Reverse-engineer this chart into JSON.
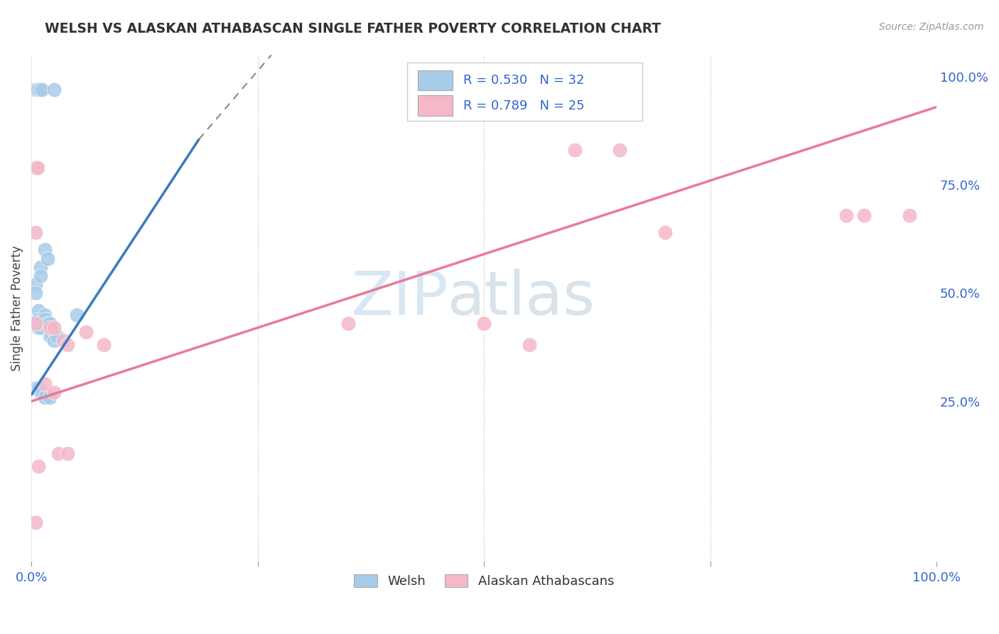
{
  "title": "WELSH VS ALASKAN ATHABASCAN SINGLE FATHER POVERTY CORRELATION CHART",
  "source": "Source: ZipAtlas.com",
  "ylabel": "Single Father Poverty",
  "xlim": [
    0.0,
    1.0
  ],
  "ylim": [
    -0.12,
    1.05
  ],
  "welsh_R": 0.53,
  "welsh_N": 32,
  "alaskan_R": 0.789,
  "alaskan_N": 25,
  "welsh_color": "#a8cce8",
  "alaskan_color": "#f4b8c8",
  "welsh_line_color": "#3a7abf",
  "alaskan_line_color": "#e87a9a",
  "watermark_zip": "ZIP",
  "watermark_atlas": "atlas",
  "welsh_points": [
    [
      0.005,
      0.97
    ],
    [
      0.007,
      0.97
    ],
    [
      0.009,
      0.97
    ],
    [
      0.012,
      0.97
    ],
    [
      0.025,
      0.97
    ],
    [
      0.005,
      0.52
    ],
    [
      0.005,
      0.5
    ],
    [
      0.01,
      0.56
    ],
    [
      0.01,
      0.54
    ],
    [
      0.015,
      0.6
    ],
    [
      0.018,
      0.58
    ],
    [
      0.008,
      0.46
    ],
    [
      0.008,
      0.44
    ],
    [
      0.008,
      0.42
    ],
    [
      0.01,
      0.42
    ],
    [
      0.012,
      0.43
    ],
    [
      0.012,
      0.44
    ],
    [
      0.015,
      0.45
    ],
    [
      0.015,
      0.44
    ],
    [
      0.018,
      0.43
    ],
    [
      0.02,
      0.43
    ],
    [
      0.02,
      0.4
    ],
    [
      0.022,
      0.4
    ],
    [
      0.025,
      0.39
    ],
    [
      0.028,
      0.4
    ],
    [
      0.005,
      0.28
    ],
    [
      0.008,
      0.28
    ],
    [
      0.01,
      0.27
    ],
    [
      0.012,
      0.27
    ],
    [
      0.015,
      0.26
    ],
    [
      0.02,
      0.26
    ],
    [
      0.05,
      0.45
    ]
  ],
  "alaskan_points": [
    [
      0.005,
      0.79
    ],
    [
      0.007,
      0.79
    ],
    [
      0.005,
      0.64
    ],
    [
      0.005,
      0.43
    ],
    [
      0.02,
      0.42
    ],
    [
      0.025,
      0.42
    ],
    [
      0.035,
      0.39
    ],
    [
      0.04,
      0.38
    ],
    [
      0.06,
      0.41
    ],
    [
      0.08,
      0.38
    ],
    [
      0.35,
      0.43
    ],
    [
      0.5,
      0.43
    ],
    [
      0.55,
      0.38
    ],
    [
      0.6,
      0.83
    ],
    [
      0.65,
      0.83
    ],
    [
      0.7,
      0.64
    ],
    [
      0.9,
      0.68
    ],
    [
      0.92,
      0.68
    ],
    [
      0.97,
      0.68
    ],
    [
      0.015,
      0.29
    ],
    [
      0.025,
      0.27
    ],
    [
      0.008,
      0.1
    ],
    [
      0.03,
      0.13
    ],
    [
      0.04,
      0.13
    ],
    [
      0.005,
      -0.03
    ]
  ],
  "welsh_trendline_solid": [
    [
      0.0,
      0.265
    ],
    [
      0.185,
      0.855
    ]
  ],
  "welsh_trendline_dashed": [
    [
      0.185,
      0.855
    ],
    [
      0.265,
      1.05
    ]
  ],
  "alaskan_trendline": [
    [
      0.0,
      0.25
    ],
    [
      1.0,
      0.93
    ]
  ],
  "ytick_positions_right": [
    0.25,
    0.5,
    0.75,
    1.0
  ],
  "ytick_labels_right": [
    "25.0%",
    "50.0%",
    "75.0%",
    "100.0%"
  ],
  "xtick_positions": [
    0.0,
    0.25,
    0.5,
    0.75,
    1.0
  ],
  "xtick_labels": [
    "0.0%",
    "",
    "",
    "",
    "100.0%"
  ]
}
